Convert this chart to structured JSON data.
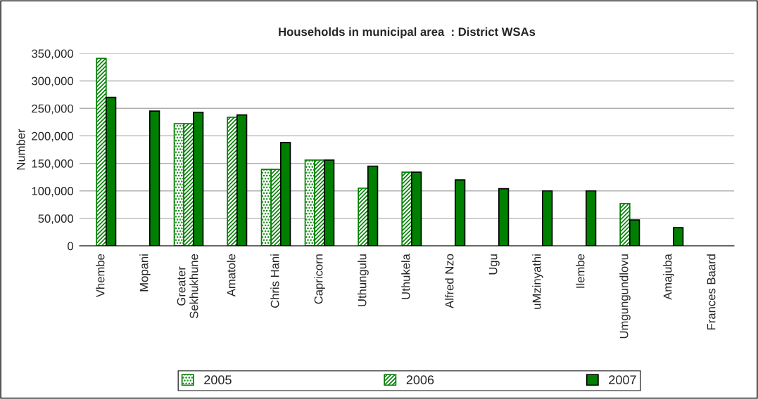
{
  "chart_data": {
    "type": "bar",
    "title": "Households in municipal area  : District WSAs",
    "ylabel": "Number",
    "categories": [
      "Vhembe",
      "Mopani",
      "Greater\nSekhukhune",
      "Amatole",
      "Chris Hani",
      "Capricorn",
      "Uthungulu",
      "Uthukela",
      "Alfred Nzo",
      "Ugu",
      "uMzinyathi",
      "Ilembe",
      "Umgungundlovu",
      "Amajuba",
      "Frances Baard"
    ],
    "series": [
      {
        "name": "2005",
        "color": "#008000",
        "values": [
          null,
          null,
          222000,
          null,
          139000,
          156000,
          null,
          null,
          null,
          null,
          null,
          null,
          null,
          null,
          null
        ]
      },
      {
        "name": "2006",
        "color": "#008000",
        "values": [
          341000,
          null,
          222000,
          234000,
          139000,
          156000,
          105000,
          134000,
          null,
          null,
          null,
          null,
          77000,
          null,
          null
        ]
      },
      {
        "name": "2007",
        "color": "#008000",
        "values": [
          270000,
          245000,
          243000,
          238000,
          188000,
          156000,
          145000,
          134000,
          120000,
          104000,
          100000,
          100000,
          47000,
          33000,
          null
        ]
      }
    ],
    "ylim": [
      0,
      350000
    ],
    "yticks": [
      {
        "value": 0,
        "label": "0"
      },
      {
        "value": 50000,
        "label": "50,000"
      },
      {
        "value": 100000,
        "label": "100,000"
      },
      {
        "value": 150000,
        "label": "150,000"
      },
      {
        "value": 200000,
        "label": "200,000"
      },
      {
        "value": 250000,
        "label": "250,000"
      },
      {
        "value": 300000,
        "label": "300,000"
      },
      {
        "value": 350000,
        "label": "350,000"
      }
    ],
    "grid": "y",
    "legend": "bottom"
  }
}
